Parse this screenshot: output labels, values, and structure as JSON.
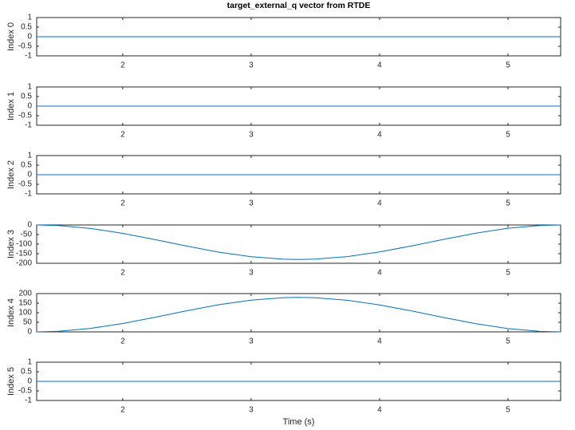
{
  "chart_data": [
    {
      "type": "line",
      "title": "target_external_q vector from RTDE",
      "ylabel": "Index 0",
      "xlim": [
        1.33,
        5.41
      ],
      "xticks": [
        2,
        3,
        4,
        5
      ],
      "ylim": [
        -1,
        1
      ],
      "yticks": [
        -1,
        -0.5,
        0,
        0.5,
        1
      ],
      "series": [
        {
          "color": "#0072bd",
          "x": [
            1.33,
            5.41
          ],
          "values": [
            0,
            0
          ]
        }
      ]
    },
    {
      "type": "line",
      "ylabel": "Index 1",
      "xlim": [
        1.33,
        5.41
      ],
      "xticks": [
        2,
        3,
        4,
        5
      ],
      "ylim": [
        -1,
        1
      ],
      "yticks": [
        -1,
        -0.5,
        0,
        0.5,
        1
      ],
      "series": [
        {
          "color": "#0072bd",
          "x": [
            1.33,
            5.41
          ],
          "values": [
            0,
            0
          ]
        }
      ]
    },
    {
      "type": "line",
      "ylabel": "Index 2",
      "xlim": [
        1.33,
        5.41
      ],
      "xticks": [
        2,
        3,
        4,
        5
      ],
      "ylim": [
        -1,
        1
      ],
      "yticks": [
        -1,
        -0.5,
        0,
        0.5,
        1
      ],
      "series": [
        {
          "color": "#0072bd",
          "x": [
            1.33,
            5.41
          ],
          "values": [
            0,
            0
          ]
        }
      ]
    },
    {
      "type": "line",
      "ylabel": "Index 3",
      "xlim": [
        1.33,
        5.41
      ],
      "xticks": [
        2,
        3,
        4,
        5
      ],
      "ylim": [
        -200,
        0
      ],
      "yticks": [
        -200,
        -150,
        -100,
        -50,
        0
      ],
      "series": [
        {
          "color": "#0072bd",
          "x": [
            1.33,
            1.5,
            1.75,
            2,
            2.25,
            2.5,
            2.75,
            3,
            3.25,
            3.37,
            3.5,
            3.75,
            4,
            4.25,
            4.5,
            4.75,
            5,
            5.25,
            5.41
          ],
          "values": [
            0,
            -3.1,
            -18.2,
            -43.8,
            -76.2,
            -110.6,
            -142,
            -165.8,
            -178.4,
            -180,
            -178.2,
            -165,
            -140.8,
            -109.2,
            -74.8,
            -42.5,
            -17.3,
            -2.6,
            0
          ]
        }
      ]
    },
    {
      "type": "line",
      "ylabel": "Index 4",
      "xlim": [
        1.33,
        5.41
      ],
      "xticks": [
        2,
        3,
        4,
        5
      ],
      "ylim": [
        0,
        200
      ],
      "yticks": [
        0,
        50,
        100,
        150,
        200
      ],
      "series": [
        {
          "color": "#0072bd",
          "x": [
            1.33,
            1.5,
            1.75,
            2,
            2.25,
            2.5,
            2.75,
            3,
            3.25,
            3.37,
            3.5,
            3.75,
            4,
            4.25,
            4.5,
            4.75,
            5,
            5.25,
            5.41
          ],
          "values": [
            0,
            3.1,
            18.2,
            43.8,
            76.2,
            110.6,
            142,
            165.8,
            178.4,
            180,
            178.2,
            165,
            140.8,
            109.2,
            74.8,
            42.5,
            17.3,
            2.6,
            0
          ]
        }
      ]
    },
    {
      "type": "line",
      "ylabel": "Index 5",
      "xlabel": "Time (s)",
      "xlim": [
        1.33,
        5.41
      ],
      "xticks": [
        2,
        3,
        4,
        5
      ],
      "ylim": [
        -1,
        1
      ],
      "yticks": [
        -1,
        -0.5,
        0,
        0.5,
        1
      ],
      "series": [
        {
          "color": "#0072bd",
          "x": [
            1.33,
            5.41
          ],
          "values": [
            0,
            0
          ]
        }
      ]
    }
  ]
}
